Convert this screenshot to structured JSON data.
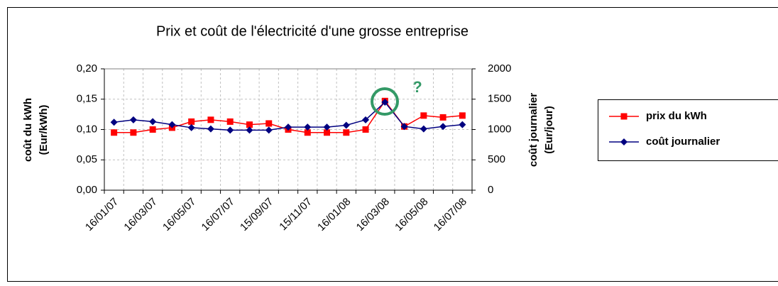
{
  "chart_data": {
    "type": "line",
    "title": "Prix et coût de l'électricité d'une grosse entreprise",
    "y_label": [
      "coût du kWh",
      "(Eur/kWh)"
    ],
    "y2_label": [
      "coût journalier",
      "(Eur/jour)"
    ],
    "annotation": "?",
    "categories": [
      "16/01/07",
      null,
      "16/03/07",
      null,
      "16/05/07",
      null,
      "16/07/07",
      null,
      "15/09/07",
      null,
      "15/11/07",
      null,
      "16/01/08",
      null,
      "16/03/08",
      null,
      "16/05/08",
      null,
      "16/07/08"
    ],
    "series": [
      {
        "name": "prix du kWh",
        "color": "#ff0000",
        "marker": "square",
        "values": [
          0.095,
          0.095,
          0.1,
          0.103,
          0.113,
          0.116,
          0.113,
          0.108,
          0.11,
          0.1,
          0.095,
          0.095,
          0.095,
          0.1,
          0.147,
          0.105,
          0.123,
          0.12,
          0.123
        ]
      },
      {
        "name": "coût journalier",
        "color": "#000080",
        "marker": "diamond",
        "axis": "y2",
        "values": [
          1120,
          1160,
          1130,
          1080,
          1030,
          1010,
          990,
          990,
          990,
          1040,
          1040,
          1040,
          1070,
          1160,
          1450,
          1050,
          1010,
          1050,
          1080
        ]
      }
    ],
    "ylim": [
      0,
      0.2
    ],
    "yticks": [
      {
        "value": 0,
        "label": "0,00"
      },
      {
        "value": 0.05,
        "label": "0,05"
      },
      {
        "value": 0.1,
        "label": "0,10"
      },
      {
        "value": 0.15,
        "label": "0,15"
      },
      {
        "value": 0.2,
        "label": "0,20"
      }
    ],
    "y2lim": [
      0,
      2000
    ],
    "y2ticks": [
      0,
      500,
      1000,
      1500,
      2000
    ],
    "grid": true,
    "legend": "right"
  }
}
